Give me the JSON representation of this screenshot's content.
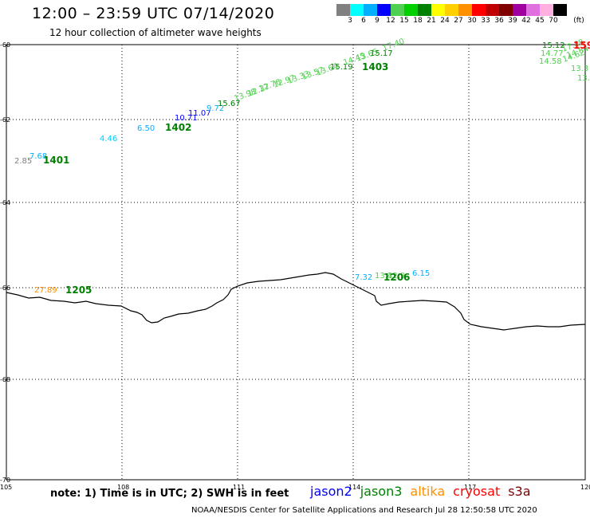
{
  "header": {
    "title": "12:00 – 23:59 UTC 07/14/2020",
    "subtitle": "12 hour collection of altimeter wave heights"
  },
  "colorbar": {
    "colors": [
      "#808080",
      "#00ffff",
      "#00b0ff",
      "#0000ff",
      "#50d050",
      "#00d000",
      "#008000",
      "#ffff00",
      "#ffd000",
      "#ff9000",
      "#ff0000",
      "#c00000",
      "#800000",
      "#a000a0",
      "#e070e0",
      "#ffb0e0",
      "#000000"
    ],
    "ticks": [
      "3",
      "6",
      "9",
      "12",
      "15",
      "18",
      "21",
      "24",
      "27",
      "30",
      "33",
      "36",
      "39",
      "42",
      "45",
      "70"
    ],
    "unit": "(ft)"
  },
  "map": {
    "lon_labels": [
      "105",
      "108",
      "111",
      "114",
      "117",
      "120"
    ],
    "lat_labels": [
      "-60",
      "-62",
      "-64",
      "-66",
      "-68",
      "-70"
    ],
    "observations": [
      {
        "text": "2.85",
        "color": "#808080"
      },
      {
        "text": "7.68",
        "color": "#00b0ff"
      },
      {
        "text": "4.46",
        "color": "#00ccff"
      },
      {
        "text": "6.50",
        "color": "#00b0ff"
      },
      {
        "text": "10.71",
        "color": "#0000ff"
      },
      {
        "text": "11.07",
        "color": "#0000ff"
      },
      {
        "text": "9.72",
        "color": "#00b0ff"
      },
      {
        "text": "15.67",
        "color": "#008000"
      },
      {
        "text": "13.98",
        "color": "#50d050"
      },
      {
        "text": "12.37",
        "color": "#50d050"
      },
      {
        "text": "12.76",
        "color": "#50d050"
      },
      {
        "text": "12.97",
        "color": "#50d050"
      },
      {
        "text": "13.33",
        "color": "#50d050"
      },
      {
        "text": "13.57",
        "color": "#50d050"
      },
      {
        "text": "13.64",
        "color": "#50d050"
      },
      {
        "text": "15.19",
        "color": "#008000"
      },
      {
        "text": "14.45",
        "color": "#50d050"
      },
      {
        "text": "13.65",
        "color": "#50d050"
      },
      {
        "text": "15.17",
        "color": "#008000"
      },
      {
        "text": "17.40",
        "color": "#50d050"
      },
      {
        "text": "15.12",
        "color": "#008000"
      },
      {
        "text": "14.77",
        "color": "#50d050"
      },
      {
        "text": "17.48",
        "color": "#50d050"
      },
      {
        "text": "14.58",
        "color": "#50d050"
      },
      {
        "text": "14.62",
        "color": "#50d050"
      },
      {
        "text": "14.84",
        "color": "#50d050"
      },
      {
        "text": "13.3",
        "color": "#50d050"
      },
      {
        "text": "13.",
        "color": "#50d050"
      },
      {
        "text": "7.32",
        "color": "#00b0ff"
      },
      {
        "text": "13.4",
        "color": "#50d050"
      },
      {
        "text": "12.9",
        "color": "#50d050"
      },
      {
        "text": "6.15",
        "color": "#00b0ff"
      },
      {
        "text": "27.89",
        "color": "#ff9000"
      }
    ],
    "pass_ids": [
      {
        "text": "1401",
        "color": "#008000"
      },
      {
        "text": "1402",
        "color": "#008000"
      },
      {
        "text": "1403",
        "color": "#008000"
      },
      {
        "text": "1205",
        "color": "#008000"
      },
      {
        "text": "1206",
        "color": "#008000"
      },
      {
        "text": "159",
        "color": "#ff0000"
      }
    ]
  },
  "note": "note:  1) Time is in UTC;  2) SWH is in feet",
  "legend": [
    {
      "name": "jason2",
      "color": "#0000ff"
    },
    {
      "name": "jason3",
      "color": "#008000"
    },
    {
      "name": "altika",
      "color": "#ff9000"
    },
    {
      "name": "cryosat",
      "color": "#ff0000"
    },
    {
      "name": "s3a",
      "color": "#800000"
    }
  ],
  "footer": "NOAA/NESDIS Center for Satellite Applications and Research     Jul 28 12:50:58 UTC 2020"
}
